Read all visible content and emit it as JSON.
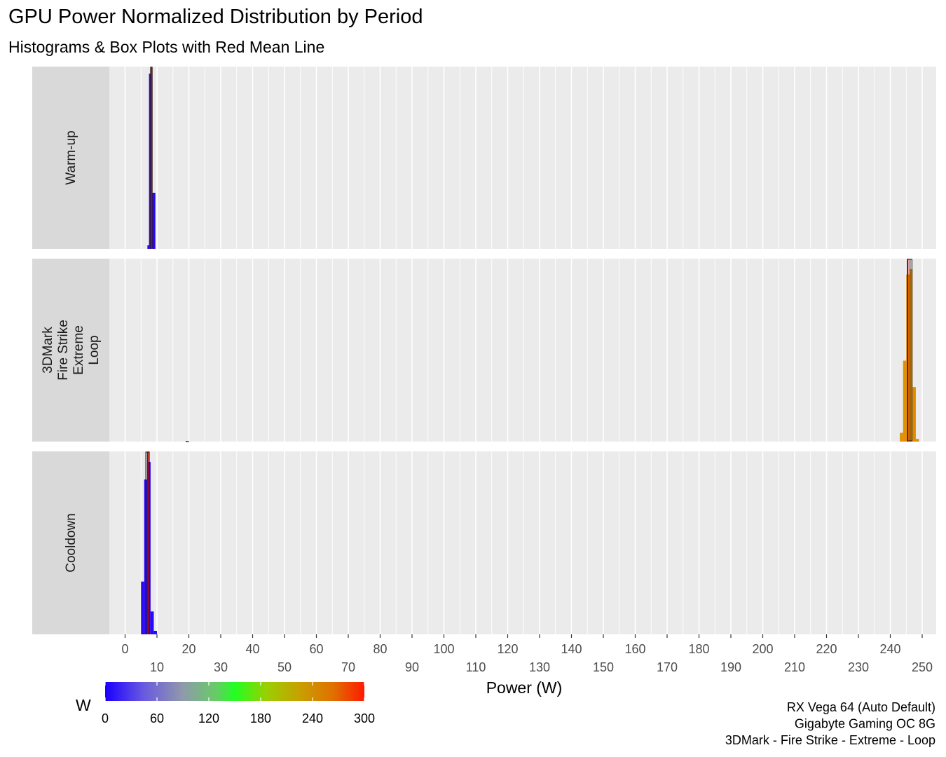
{
  "chart_data": {
    "type": "histogram",
    "title": "GPU Power Normalized Distribution by Period",
    "subtitle": "Histograms & Box Plots with Red Mean Line",
    "xlabel": "Power (W)",
    "xlim": [
      -5,
      253
    ],
    "x_ticks_row1": [
      0,
      20,
      40,
      60,
      80,
      100,
      120,
      140,
      160,
      180,
      200,
      220,
      240
    ],
    "x_ticks_row2": [
      10,
      30,
      50,
      70,
      90,
      110,
      130,
      150,
      170,
      190,
      210,
      230,
      250
    ],
    "y_axis_shown": false,
    "grid": "vertical major and minor lines",
    "bin_width": 1,
    "facets": [
      {
        "label": "Warm-up",
        "label_lines": [
          "Warm-up"
        ],
        "bins": [
          {
            "x": 7.5,
            "density": 0.02,
            "color": "#2a0af6"
          },
          {
            "x": 8.0,
            "density": 1.0,
            "color": "#2a0af6"
          },
          {
            "x": 9.0,
            "density": 0.32,
            "color": "#2a0af6"
          }
        ],
        "box": {
          "q1": 8.0,
          "median": 8.2,
          "q3": 8.5
        },
        "mean": 8.3
      },
      {
        "label": "3DMark Fire Strike Extreme Loop",
        "label_lines": [
          "3DMark",
          "Fire Strike",
          "Extreme",
          "Loop"
        ],
        "bins": [
          {
            "x": 19.5,
            "density": 0.004,
            "color": "#2a14ec"
          },
          {
            "x": 243.5,
            "density": 0.05,
            "color": "#e09000"
          },
          {
            "x": 244.5,
            "density": 0.46,
            "color": "#e09000"
          },
          {
            "x": 245.5,
            "density": 0.95,
            "color": "#e08e00"
          },
          {
            "x": 246.5,
            "density": 0.98,
            "color": "#e08c00"
          },
          {
            "x": 247.5,
            "density": 0.31,
            "color": "#e08a00"
          },
          {
            "x": 248.5,
            "density": 0.015,
            "color": "#e08a00"
          }
        ],
        "box": {
          "q1": 245.3,
          "median": 246.2,
          "q3": 246.8
        },
        "mean": 245.5
      },
      {
        "label": "Cooldown",
        "label_lines": [
          "Cooldown"
        ],
        "bins": [
          {
            "x": 5.5,
            "density": 0.3,
            "color": "#2a0af6"
          },
          {
            "x": 6.5,
            "density": 0.88,
            "color": "#2a0af6"
          },
          {
            "x": 7.5,
            "density": 0.98,
            "color": "#2a0af6"
          },
          {
            "x": 8.5,
            "density": 0.13,
            "color": "#2a0af6"
          },
          {
            "x": 9.5,
            "density": 0.02,
            "color": "#2a0af6"
          }
        ],
        "box": {
          "q1": 6.5,
          "median": 7.0,
          "q3": 7.6
        },
        "mean": 7.2
      }
    ],
    "legend": {
      "title": "W",
      "placement": "bottom-left",
      "type": "colorbar",
      "range": [
        0,
        300
      ],
      "ticks": [
        0,
        60,
        120,
        180,
        240,
        300
      ],
      "colors": [
        "#0000ff",
        "#7a7ad8",
        "#9aa0a0",
        "#00ff00",
        "#b0c000",
        "#e08a00",
        "#ff0000"
      ]
    },
    "caption_lines": [
      "RX Vega 64 (Auto Default)",
      "Gigabyte Gaming OC 8G",
      "3DMark - Fire Strike - Extreme - Loop"
    ],
    "colors": {
      "panel_bg": "#ebebeb",
      "strip_bg": "#d9d9d9",
      "grid": "#ffffff",
      "mean_line": "#cc0000"
    }
  }
}
